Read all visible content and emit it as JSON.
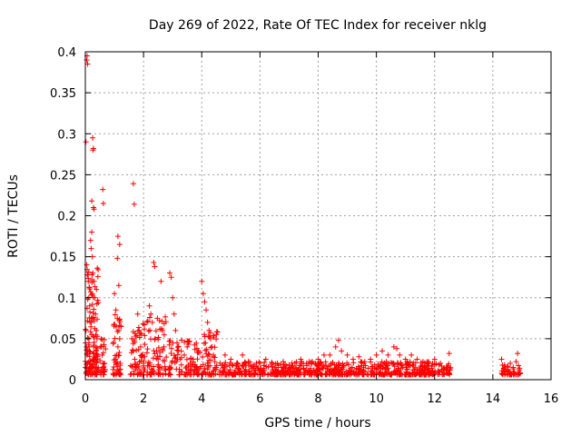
{
  "chart_data": {
    "type": "scatter",
    "title": "Day 269 of 2022, Rate Of TEC Index for receiver nklg",
    "xlabel": "GPS time / hours",
    "ylabel": "ROTI / TECUs",
    "xlim": [
      0,
      16
    ],
    "ylim": [
      0,
      0.4
    ],
    "xticks": [
      "0",
      "2",
      "4",
      "6",
      "8",
      "10",
      "12",
      "14",
      "16"
    ],
    "yticks": [
      "0",
      "0.05",
      "0.1",
      "0.15",
      "0.2",
      "0.25",
      "0.3",
      "0.35",
      "0.4"
    ],
    "grid": true,
    "marker": "+",
    "series_color": "#ff0000",
    "points": [
      [
        0.02,
        0.29
      ],
      [
        0.05,
        0.39
      ],
      [
        0.06,
        0.395
      ],
      [
        0.08,
        0.385
      ],
      [
        0.25,
        0.295
      ],
      [
        0.26,
        0.28
      ],
      [
        0.28,
        0.282
      ],
      [
        0.22,
        0.218
      ],
      [
        0.3,
        0.208
      ],
      [
        0.28,
        0.21
      ],
      [
        0.6,
        0.232
      ],
      [
        0.62,
        0.215
      ],
      [
        1.65,
        0.239
      ],
      [
        1.68,
        0.214
      ],
      [
        0.05,
        0.14
      ],
      [
        0.08,
        0.128
      ],
      [
        0.1,
        0.12
      ],
      [
        0.12,
        0.1
      ],
      [
        0.15,
        0.09
      ],
      [
        0.18,
        0.17
      ],
      [
        0.2,
        0.16
      ],
      [
        0.22,
        0.18
      ],
      [
        0.24,
        0.15
      ],
      [
        0.26,
        0.13
      ],
      [
        0.3,
        0.12
      ],
      [
        0.32,
        0.1
      ],
      [
        0.35,
        0.08
      ],
      [
        0.38,
        0.06
      ],
      [
        0.4,
        0.05
      ],
      [
        0.02,
        0.06
      ],
      [
        0.04,
        0.04
      ],
      [
        0.06,
        0.03
      ],
      [
        0.08,
        0.02
      ],
      [
        0.1,
        0.012
      ],
      [
        0.12,
        0.05
      ],
      [
        0.14,
        0.035
      ],
      [
        0.16,
        0.02
      ],
      [
        0.2,
        0.07
      ],
      [
        0.22,
        0.055
      ],
      [
        0.55,
        0.04
      ],
      [
        0.58,
        0.03
      ],
      [
        0.6,
        0.02
      ],
      [
        0.62,
        0.015
      ],
      [
        1.0,
        0.105
      ],
      [
        1.05,
        0.085
      ],
      [
        1.1,
        0.075
      ],
      [
        1.15,
        0.06
      ],
      [
        1.12,
        0.04
      ],
      [
        1.08,
        0.03
      ],
      [
        1.2,
        0.02
      ],
      [
        1.18,
        0.012
      ],
      [
        1.1,
        0.148
      ],
      [
        1.15,
        0.115
      ],
      [
        1.12,
        0.175
      ],
      [
        1.18,
        0.165
      ],
      [
        1.6,
        0.05
      ],
      [
        1.65,
        0.035
      ],
      [
        1.7,
        0.025
      ],
      [
        1.8,
        0.08
      ],
      [
        1.85,
        0.06
      ],
      [
        1.9,
        0.04
      ],
      [
        1.95,
        0.03
      ],
      [
        2.0,
        0.02
      ],
      [
        1.75,
        0.015
      ],
      [
        2.2,
        0.09
      ],
      [
        2.25,
        0.08
      ],
      [
        2.3,
        0.07
      ],
      [
        2.35,
        0.143
      ],
      [
        2.38,
        0.138
      ],
      [
        2.4,
        0.05
      ],
      [
        2.45,
        0.035
      ],
      [
        2.5,
        0.025
      ],
      [
        2.55,
        0.015
      ],
      [
        2.6,
        0.12
      ],
      [
        2.65,
        0.06
      ],
      [
        2.7,
        0.04
      ],
      [
        2.9,
        0.13
      ],
      [
        2.95,
        0.125
      ],
      [
        3.0,
        0.1
      ],
      [
        3.05,
        0.08
      ],
      [
        3.1,
        0.06
      ],
      [
        3.15,
        0.045
      ],
      [
        3.2,
        0.035
      ],
      [
        3.25,
        0.025
      ],
      [
        3.3,
        0.018
      ],
      [
        3.4,
        0.03
      ],
      [
        3.5,
        0.04
      ],
      [
        3.6,
        0.02
      ],
      [
        3.7,
        0.025
      ],
      [
        3.8,
        0.015
      ],
      [
        4.0,
        0.12
      ],
      [
        4.05,
        0.105
      ],
      [
        4.1,
        0.095
      ],
      [
        4.15,
        0.085
      ],
      [
        4.2,
        0.07
      ],
      [
        4.25,
        0.06
      ],
      [
        4.3,
        0.05
      ],
      [
        4.35,
        0.04
      ],
      [
        4.4,
        0.03
      ],
      [
        4.45,
        0.022
      ],
      [
        4.5,
        0.015
      ],
      [
        4.8,
        0.03
      ],
      [
        5.0,
        0.025
      ],
      [
        5.2,
        0.02
      ],
      [
        5.4,
        0.03
      ],
      [
        5.6,
        0.022
      ],
      [
        5.8,
        0.018
      ],
      [
        6.0,
        0.02
      ],
      [
        6.2,
        0.025
      ],
      [
        6.4,
        0.018
      ],
      [
        6.6,
        0.02
      ],
      [
        6.8,
        0.022
      ],
      [
        7.0,
        0.018
      ],
      [
        7.2,
        0.02
      ],
      [
        7.4,
        0.025
      ],
      [
        7.6,
        0.02
      ],
      [
        7.8,
        0.022
      ],
      [
        8.0,
        0.025
      ],
      [
        8.2,
        0.03
      ],
      [
        8.4,
        0.03
      ],
      [
        8.6,
        0.04
      ],
      [
        8.7,
        0.048
      ],
      [
        8.8,
        0.035
      ],
      [
        9.0,
        0.03
      ],
      [
        9.2,
        0.025
      ],
      [
        9.4,
        0.028
      ],
      [
        9.6,
        0.022
      ],
      [
        9.8,
        0.025
      ],
      [
        10.0,
        0.03
      ],
      [
        10.2,
        0.035
      ],
      [
        10.4,
        0.03
      ],
      [
        10.6,
        0.04
      ],
      [
        10.7,
        0.038
      ],
      [
        10.8,
        0.03
      ],
      [
        11.0,
        0.025
      ],
      [
        11.2,
        0.03
      ],
      [
        11.4,
        0.025
      ],
      [
        11.6,
        0.022
      ],
      [
        11.8,
        0.02
      ],
      [
        12.0,
        0.025
      ],
      [
        12.2,
        0.02
      ],
      [
        12.4,
        0.015
      ],
      [
        12.5,
        0.032
      ],
      [
        14.3,
        0.025
      ],
      [
        14.4,
        0.018
      ],
      [
        14.5,
        0.012
      ],
      [
        14.6,
        0.02
      ],
      [
        14.7,
        0.015
      ],
      [
        14.8,
        0.022
      ],
      [
        14.85,
        0.032
      ],
      [
        14.9,
        0.012
      ]
    ],
    "clusters": [
      {
        "x": [
          0.0,
          0.45
        ],
        "ymin": 0.006,
        "ymax": 0.14,
        "n": 120
      },
      {
        "x": [
          0.5,
          0.7
        ],
        "ymin": 0.006,
        "ymax": 0.05,
        "n": 25
      },
      {
        "x": [
          0.95,
          1.25
        ],
        "ymin": 0.006,
        "ymax": 0.08,
        "n": 45
      },
      {
        "x": [
          1.55,
          2.05
        ],
        "ymin": 0.006,
        "ymax": 0.07,
        "n": 55
      },
      {
        "x": [
          2.1,
          2.8
        ],
        "ymin": 0.006,
        "ymax": 0.08,
        "n": 70
      },
      {
        "x": [
          2.85,
          3.95
        ],
        "ymin": 0.006,
        "ymax": 0.05,
        "n": 90
      },
      {
        "x": [
          3.95,
          4.55
        ],
        "ymin": 0.006,
        "ymax": 0.06,
        "n": 55
      },
      {
        "x": [
          4.6,
          12.55
        ],
        "ymin": 0.006,
        "ymax": 0.022,
        "n": 700
      },
      {
        "x": [
          14.3,
          14.95
        ],
        "ymin": 0.006,
        "ymax": 0.02,
        "n": 45
      }
    ]
  }
}
